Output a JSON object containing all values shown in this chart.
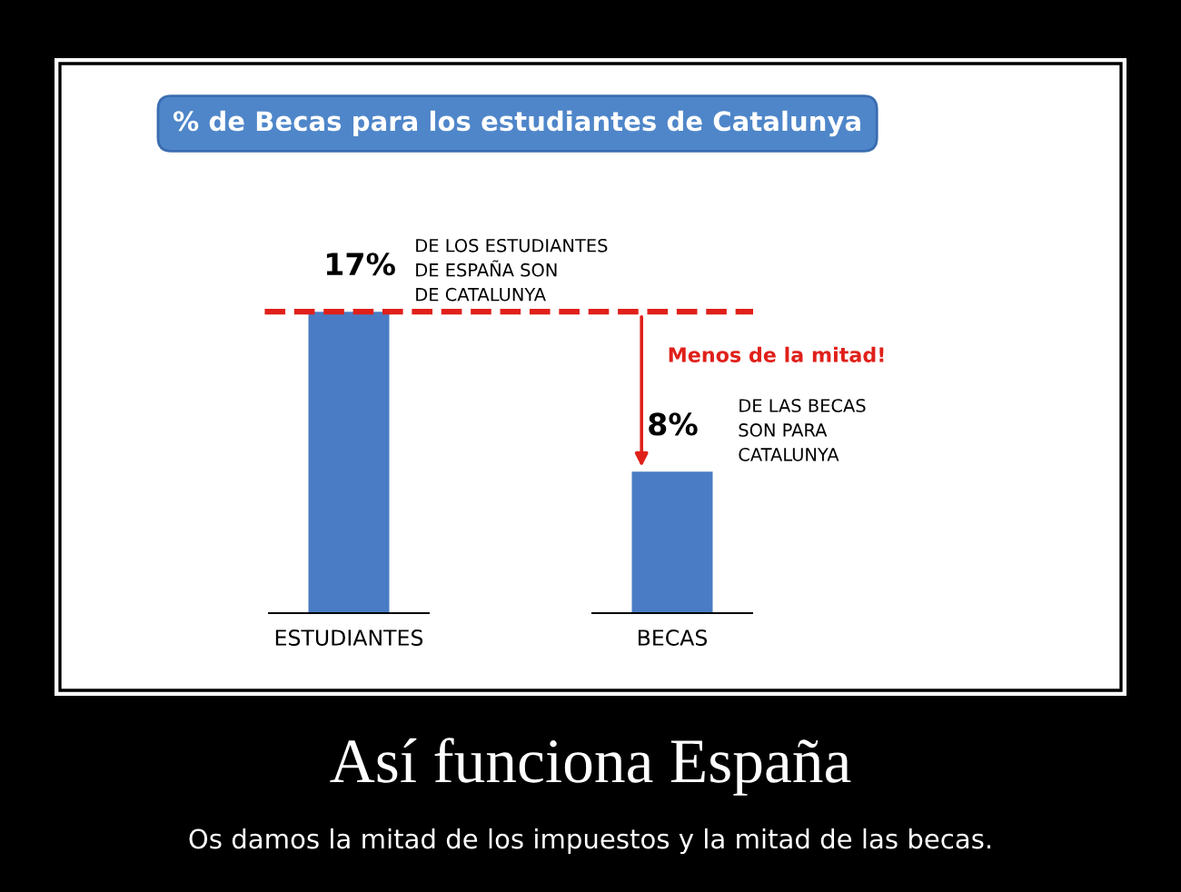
{
  "chart_data": {
    "type": "bar",
    "title": "% de Becas para los estudiantes de Catalunya",
    "categories": [
      "ESTUDIANTES",
      "BECAS"
    ],
    "values": [
      17,
      8
    ],
    "color": "#4a7cc5",
    "value_labels": [
      "17%",
      "8%"
    ],
    "ref_lines": [
      {
        "axis": "y",
        "value": 17,
        "color": "#e0201a",
        "line_style": "dashed"
      }
    ],
    "annotations": [
      "DE LOS ESTUDIANTES\nDE ESPAÑA SON\nDE CATALUNYA",
      "DE LAS BECAS\nSON PARA\nCATALUNYA",
      "Menos de la mitad!",
      "Así funciona España",
      "Os damos la mitad de los impuestos y la mitad de las becas."
    ],
    "grid": false,
    "legend": false
  }
}
